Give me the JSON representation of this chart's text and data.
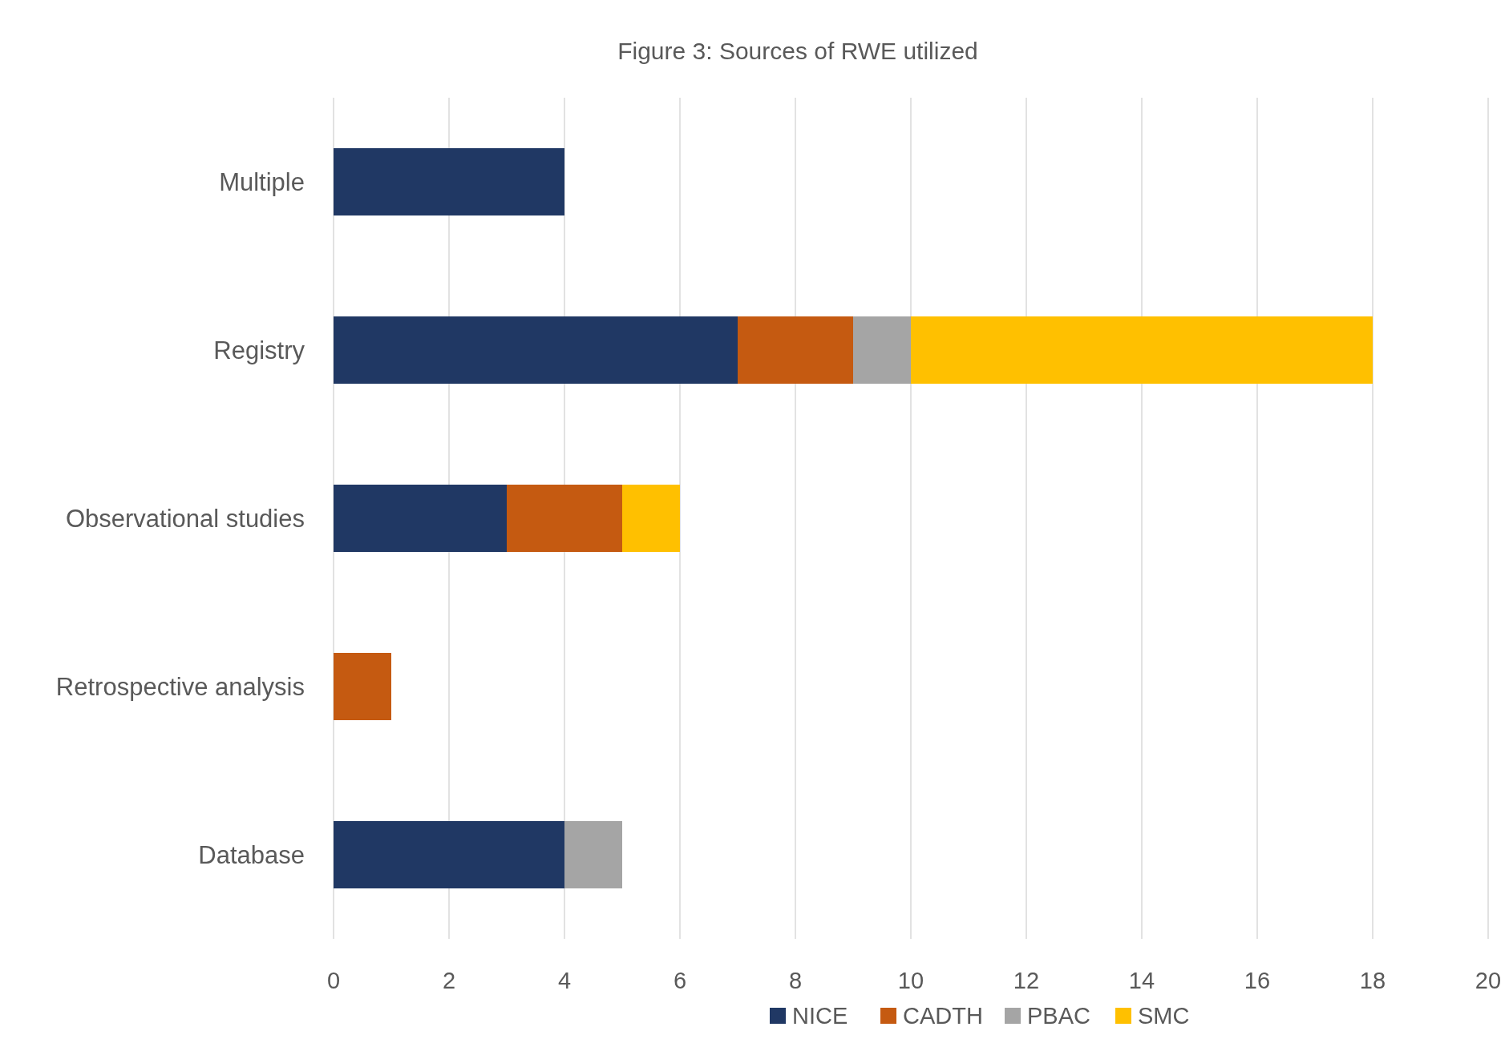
{
  "chart_data": {
    "type": "bar",
    "title": "Figure 3: Sources of RWE utilized",
    "orientation": "horizontal",
    "stacked": true,
    "categories": [
      "Multiple",
      "Registry",
      "Observational studies",
      "Retrospective analysis",
      "Database"
    ],
    "series": [
      {
        "name": "NICE",
        "color": "#203864",
        "values": [
          4,
          7,
          3,
          0,
          4
        ]
      },
      {
        "name": "CADTH",
        "color": "#c55a11",
        "values": [
          0,
          2,
          2,
          1,
          0
        ]
      },
      {
        "name": "PBAC",
        "color": "#a5a5a5",
        "values": [
          0,
          1,
          0,
          0,
          1
        ]
      },
      {
        "name": "SMC",
        "color": "#ffc000",
        "values": [
          0,
          8,
          1,
          0,
          0
        ]
      }
    ],
    "xlim": [
      0,
      20
    ],
    "xticks": [
      0,
      2,
      4,
      6,
      8,
      10,
      12,
      14,
      16,
      18,
      20
    ],
    "grid": "x",
    "legend": "bottom"
  }
}
